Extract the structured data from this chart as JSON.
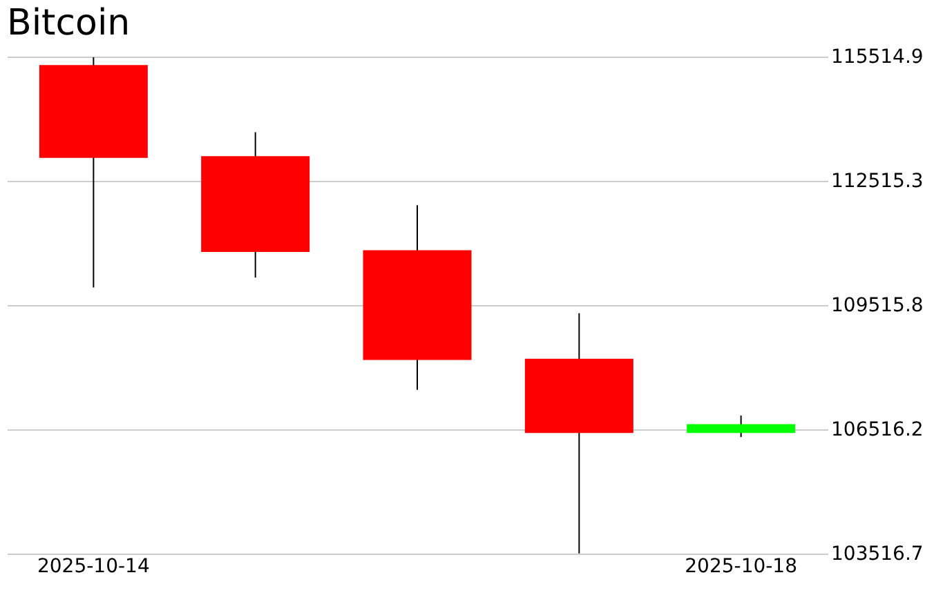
{
  "chart_data": {
    "type": "candlestick",
    "title": "Bitcoin",
    "categories": [
      "2025-10-14",
      null,
      null,
      null,
      "2025-10-18"
    ],
    "ohlc": [
      [
        115310,
        115500,
        109940,
        113070
      ],
      [
        113110,
        113690,
        110180,
        110800
      ],
      [
        110840,
        111930,
        107470,
        108190
      ],
      [
        108220,
        109320,
        103520,
        106430
      ],
      [
        106430,
        106850,
        106330,
        106640
      ]
    ],
    "colors": [
      "#ff0000",
      "#ff0000",
      "#ff0000",
      "#ff0000",
      "#00ff00"
    ],
    "ylim": [
      103516.7,
      115514.9
    ],
    "yticks": [
      103516.7,
      106516.2,
      109515.8,
      112515.3,
      115514.9
    ],
    "grid": "y"
  }
}
